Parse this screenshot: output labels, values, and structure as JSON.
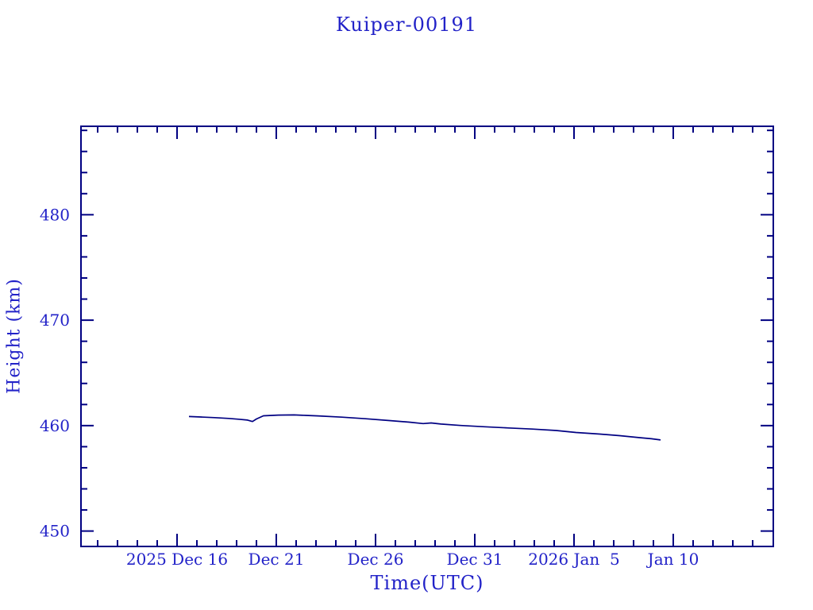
{
  "chart_data": {
    "type": "line",
    "title": "Kuiper-00191",
    "xlabel": "Time(UTC)",
    "ylabel": "Height (km)",
    "x_axis": {
      "description": "time in days relative to 2025 Dec 16 00:00 UTC",
      "range": [
        -4.84,
        30.04
      ],
      "major_ticks": [
        {
          "t": 0,
          "label": "2025 Dec 16"
        },
        {
          "t": 5,
          "label": "Dec 21"
        },
        {
          "t": 10,
          "label": "Dec 26"
        },
        {
          "t": 15,
          "label": "Dec 31"
        },
        {
          "t": 20,
          "label": "2026 Jan  5"
        },
        {
          "t": 25,
          "label": "Jan 10"
        }
      ],
      "minor_tick_interval_days": 1
    },
    "y_axis": {
      "range": [
        448.6,
        488.6
      ],
      "major_ticks": [
        {
          "v": 450,
          "label": "450"
        },
        {
          "v": 460,
          "label": "460"
        },
        {
          "v": 470,
          "label": "470"
        },
        {
          "v": 480,
          "label": "480"
        }
      ],
      "minor_tick_interval": 2
    },
    "grid": false,
    "legend": false,
    "series": [
      {
        "name": "height",
        "points": [
          [
            0.6,
            460.86
          ],
          [
            1.2,
            460.82
          ],
          [
            1.9,
            460.76
          ],
          [
            2.6,
            460.68
          ],
          [
            3.1,
            460.61
          ],
          [
            3.55,
            460.52
          ],
          [
            3.8,
            460.39
          ],
          [
            4.0,
            460.63
          ],
          [
            4.35,
            460.93
          ],
          [
            5.1,
            461.0
          ],
          [
            5.9,
            461.01
          ],
          [
            6.5,
            460.97
          ],
          [
            7.1,
            460.92
          ],
          [
            8.3,
            460.8
          ],
          [
            9.5,
            460.65
          ],
          [
            10.7,
            460.48
          ],
          [
            11.7,
            460.33
          ],
          [
            12.4,
            460.19
          ],
          [
            12.8,
            460.25
          ],
          [
            13.3,
            460.15
          ],
          [
            14.3,
            460.01
          ],
          [
            15.5,
            459.89
          ],
          [
            16.7,
            459.78
          ],
          [
            17.9,
            459.67
          ],
          [
            19.1,
            459.54
          ],
          [
            20.1,
            459.35
          ],
          [
            21.3,
            459.2
          ],
          [
            22.3,
            459.05
          ],
          [
            23.3,
            458.86
          ],
          [
            23.9,
            458.75
          ],
          [
            24.36,
            458.64
          ]
        ]
      }
    ]
  },
  "colors": {
    "axis": "#000082",
    "line": "#000082",
    "text": "#2222c8",
    "background": "#ffffff"
  }
}
